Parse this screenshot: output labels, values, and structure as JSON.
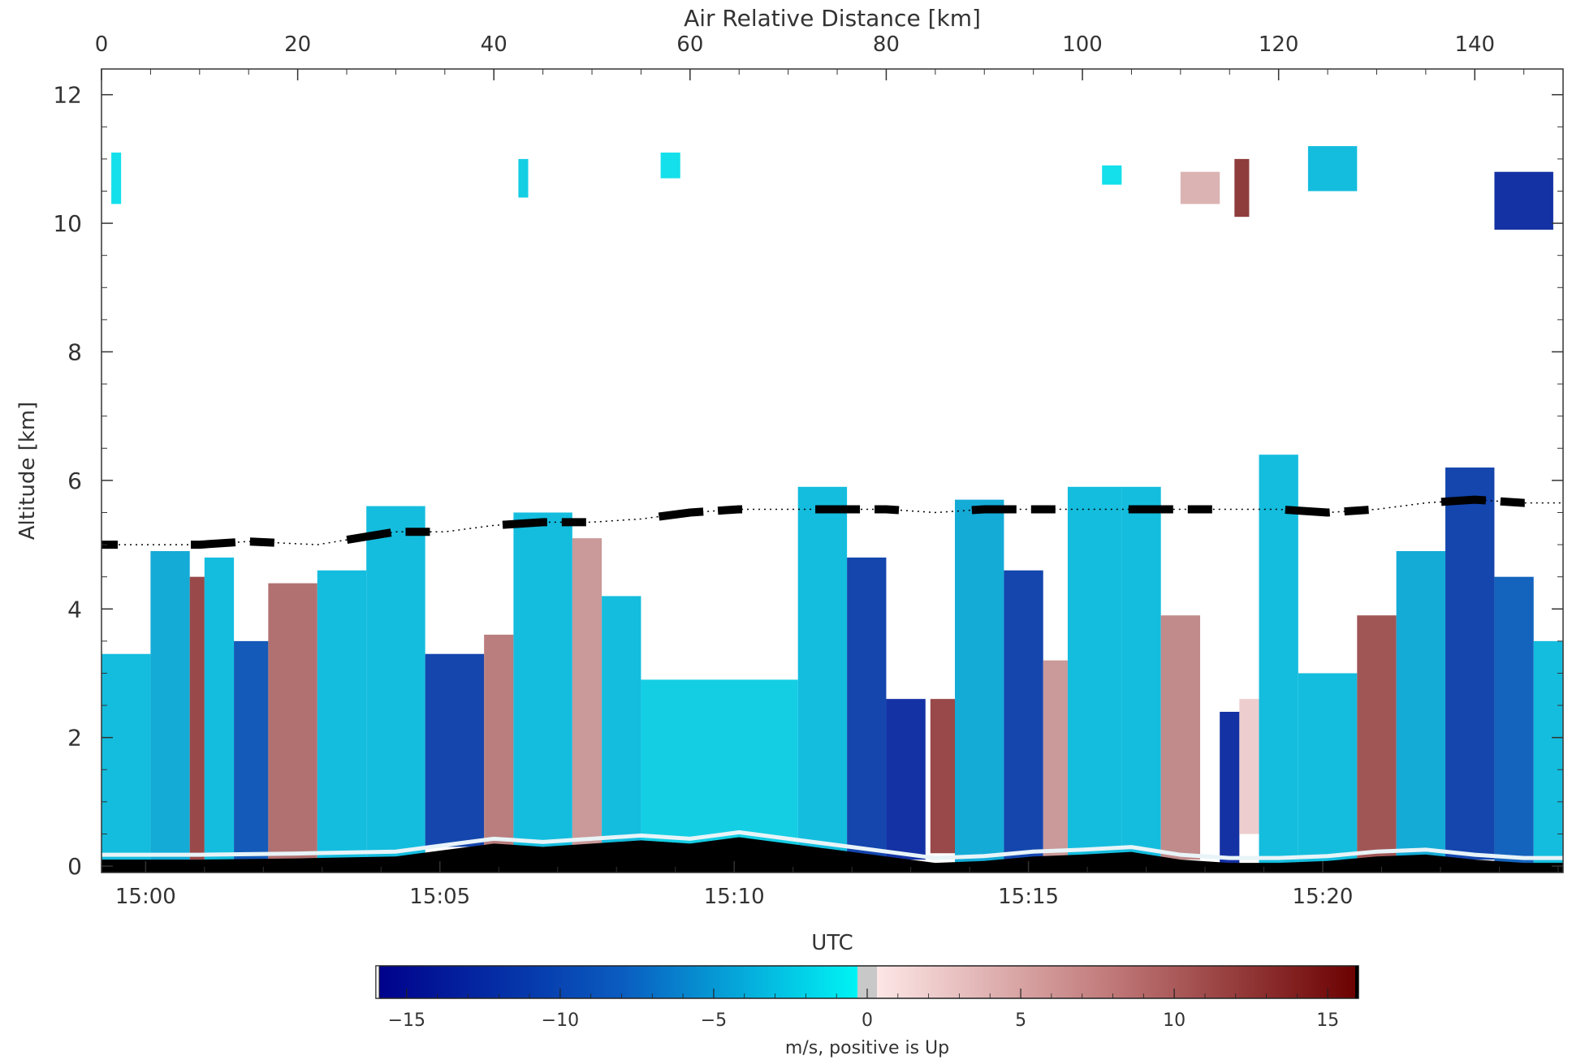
{
  "chart_data": [
    {
      "type": "heatmap",
      "title": "",
      "xlabel_top": "Air Relative Distance [km]",
      "xlabel_bottom": "UTC",
      "ylabel": "Altitude [km]",
      "xlim_top_km": [
        0,
        149
      ],
      "ylim_km": [
        -0.1,
        12.4
      ],
      "x_ticks_top": [
        "0",
        "20",
        "40",
        "60",
        "80",
        "100",
        "120",
        "140"
      ],
      "x_ticks_bottom": [
        "15:00",
        "15:05",
        "15:10",
        "15:15",
        "15:20"
      ],
      "y_ticks": [
        "0",
        "2",
        "4",
        "6",
        "8",
        "10",
        "12"
      ],
      "top_tick_values_km": [
        0,
        20,
        40,
        60,
        80,
        100,
        120,
        140
      ],
      "bottom_tick_values_km": [
        4.5,
        34.5,
        64.5,
        94.5,
        124.5
      ],
      "y_tick_values_km": [
        0,
        2,
        4,
        6,
        8,
        10,
        12
      ],
      "melting_layer_altitude_km": {
        "x_km": [
          0,
          10,
          15,
          22,
          30,
          35,
          40,
          45,
          50,
          55,
          60,
          65,
          70,
          75,
          80,
          85,
          90,
          95,
          100,
          105,
          110,
          115,
          120,
          125,
          130,
          135,
          140,
          145,
          149
        ],
        "y_km": [
          5.0,
          5.0,
          5.05,
          5.0,
          5.2,
          5.2,
          5.3,
          5.35,
          5.35,
          5.4,
          5.5,
          5.55,
          5.55,
          5.55,
          5.55,
          5.5,
          5.55,
          5.55,
          5.55,
          5.55,
          5.55,
          5.55,
          5.55,
          5.5,
          5.55,
          5.65,
          5.7,
          5.65,
          5.65
        ]
      },
      "surface_height_km": {
        "x_km": [
          0,
          10,
          20,
          30,
          35,
          40,
          45,
          50,
          55,
          60,
          65,
          70,
          75,
          80,
          85,
          90,
          95,
          100,
          105,
          110,
          115,
          120,
          125,
          130,
          135,
          140,
          145,
          149
        ],
        "y_km": [
          0.1,
          0.1,
          0.12,
          0.15,
          0.25,
          0.35,
          0.3,
          0.35,
          0.4,
          0.35,
          0.45,
          0.35,
          0.25,
          0.15,
          0.05,
          0.08,
          0.15,
          0.18,
          0.22,
          0.1,
          0.05,
          0.05,
          0.08,
          0.15,
          0.18,
          0.1,
          0.05,
          0.05
        ]
      },
      "vertical_velocity_cells": [
        {
          "x_km": [
            0,
            5
          ],
          "alt_km": [
            0,
            3.3
          ],
          "w_ms": -3
        },
        {
          "x_km": [
            5,
            9
          ],
          "alt_km": [
            0,
            4.9
          ],
          "w_ms": -4
        },
        {
          "x_km": [
            9,
            10.5
          ],
          "alt_km": [
            0.1,
            4.5
          ],
          "w_ms": 12
        },
        {
          "x_km": [
            10.5,
            13.5
          ],
          "alt_km": [
            0,
            4.8
          ],
          "w_ms": -3
        },
        {
          "x_km": [
            13.5,
            17
          ],
          "alt_km": [
            0,
            3.5
          ],
          "w_ms": -9
        },
        {
          "x_km": [
            17,
            22
          ],
          "alt_km": [
            0.1,
            4.4
          ],
          "w_ms": 9
        },
        {
          "x_km": [
            22,
            27
          ],
          "alt_km": [
            0,
            4.6
          ],
          "w_ms": -3
        },
        {
          "x_km": [
            27,
            33
          ],
          "alt_km": [
            0,
            5.6
          ],
          "w_ms": -3
        },
        {
          "x_km": [
            33,
            39
          ],
          "alt_km": [
            0.3,
            3.3
          ],
          "w_ms": -11
        },
        {
          "x_km": [
            39,
            42
          ],
          "alt_km": [
            0.3,
            3.6
          ],
          "w_ms": 8
        },
        {
          "x_km": [
            42,
            48
          ],
          "alt_km": [
            0.3,
            5.5
          ],
          "w_ms": -3
        },
        {
          "x_km": [
            48,
            51
          ],
          "alt_km": [
            0.3,
            5.1
          ],
          "w_ms": 6
        },
        {
          "x_km": [
            51,
            55
          ],
          "alt_km": [
            0.3,
            4.2
          ],
          "w_ms": -3
        },
        {
          "x_km": [
            55,
            71
          ],
          "alt_km": [
            0.3,
            2.9
          ],
          "w_ms": -2
        },
        {
          "x_km": [
            71,
            76
          ],
          "alt_km": [
            0.2,
            5.9
          ],
          "w_ms": -3
        },
        {
          "x_km": [
            76,
            80
          ],
          "alt_km": [
            0.1,
            4.8
          ],
          "w_ms": -11
        },
        {
          "x_km": [
            80,
            84
          ],
          "alt_km": [
            0.1,
            2.6
          ],
          "w_ms": -13
        },
        {
          "x_km": [
            84.5,
            87
          ],
          "alt_km": [
            0.2,
            2.6
          ],
          "w_ms": 12
        },
        {
          "x_km": [
            87,
            92
          ],
          "alt_km": [
            0,
            5.7
          ],
          "w_ms": -4
        },
        {
          "x_km": [
            92,
            96
          ],
          "alt_km": [
            0,
            4.6
          ],
          "w_ms": -11
        },
        {
          "x_km": [
            96,
            98.5
          ],
          "alt_km": [
            0,
            3.2
          ],
          "w_ms": 6
        },
        {
          "x_km": [
            98.5,
            104
          ],
          "alt_km": [
            0,
            5.9
          ],
          "w_ms": -3
        },
        {
          "x_km": [
            104,
            108
          ],
          "alt_km": [
            0.1,
            5.9
          ],
          "w_ms": -3
        },
        {
          "x_km": [
            108,
            112
          ],
          "alt_km": [
            0.1,
            3.9
          ],
          "w_ms": 7
        },
        {
          "x_km": [
            114,
            116
          ],
          "alt_km": [
            0,
            2.4
          ],
          "w_ms": -13
        },
        {
          "x_km": [
            116,
            118
          ],
          "alt_km": [
            0.5,
            2.6
          ],
          "w_ms": 2
        },
        {
          "x_km": [
            118,
            122
          ],
          "alt_km": [
            0,
            6.4
          ],
          "w_ms": -3
        },
        {
          "x_km": [
            122,
            128
          ],
          "alt_km": [
            0,
            3.0
          ],
          "w_ms": -3
        },
        {
          "x_km": [
            128,
            132
          ],
          "alt_km": [
            0.1,
            3.9
          ],
          "w_ms": 11
        },
        {
          "x_km": [
            132,
            137
          ],
          "alt_km": [
            0,
            4.9
          ],
          "w_ms": -4
        },
        {
          "x_km": [
            137,
            142
          ],
          "alt_km": [
            0.1,
            6.2
          ],
          "w_ms": -11
        },
        {
          "x_km": [
            142,
            146
          ],
          "alt_km": [
            0,
            4.5
          ],
          "w_ms": -8
        },
        {
          "x_km": [
            146,
            149
          ],
          "alt_km": [
            0,
            3.5
          ],
          "w_ms": -3
        },
        {
          "x_km": [
            1,
            2
          ],
          "alt_km": [
            10.3,
            11.1
          ],
          "w_ms": -1
        },
        {
          "x_km": [
            42.5,
            43.5
          ],
          "alt_km": [
            10.4,
            11.0
          ],
          "w_ms": -2
        },
        {
          "x_km": [
            57,
            59
          ],
          "alt_km": [
            10.7,
            11.1
          ],
          "w_ms": -1
        },
        {
          "x_km": [
            102,
            104
          ],
          "alt_km": [
            10.6,
            10.9
          ],
          "w_ms": -1
        },
        {
          "x_km": [
            110,
            114
          ],
          "alt_km": [
            10.3,
            10.8
          ],
          "w_ms": 4
        },
        {
          "x_km": [
            115.5,
            117
          ],
          "alt_km": [
            10.1,
            11.0
          ],
          "w_ms": 13
        },
        {
          "x_km": [
            123,
            128
          ],
          "alt_km": [
            10.5,
            11.2
          ],
          "w_ms": -3
        },
        {
          "x_km": [
            142,
            148
          ],
          "alt_km": [
            9.9,
            10.8
          ],
          "w_ms": -13
        }
      ],
      "colorbar": {
        "label": "m/s, positive is Up",
        "range": [
          -16,
          16
        ],
        "ticks": [
          "−15",
          "−10",
          "−5",
          "0",
          "5",
          "10",
          "15"
        ],
        "tick_values": [
          -15,
          -10,
          -5,
          0,
          5,
          10,
          15
        ],
        "colors": {
          "min": "#00008b",
          "mid_low": "#0057b8",
          "near_zero_low": "#00f0f0",
          "zero_band": "#c8c8c8",
          "near_zero_high": "#fde6e6",
          "max": "#6b0000"
        }
      }
    }
  ]
}
